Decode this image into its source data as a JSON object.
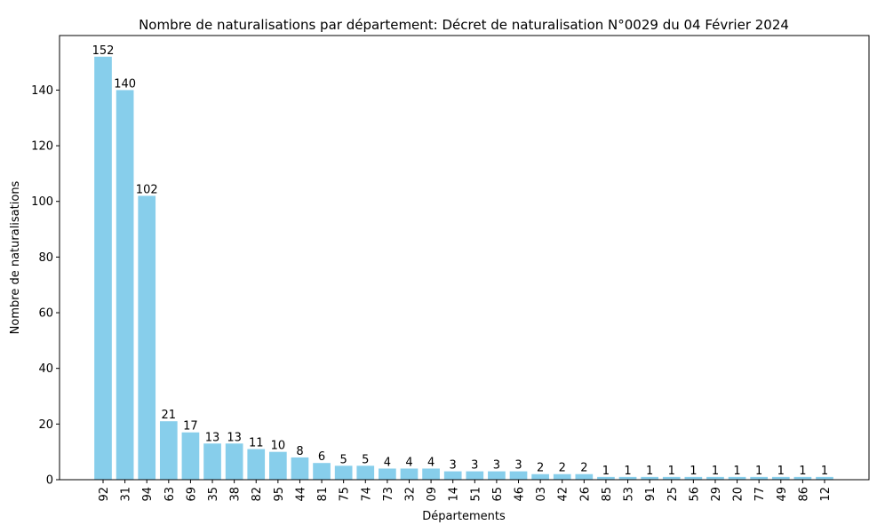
{
  "chart_data": {
    "type": "bar",
    "title": "Nombre de naturalisations par département: Décret de naturalisation N°0029 du 04 Février 2024",
    "xlabel": "Départements",
    "ylabel": "Nombre de naturalisations",
    "categories": [
      "92",
      "31",
      "94",
      "63",
      "69",
      "35",
      "38",
      "82",
      "95",
      "44",
      "81",
      "75",
      "74",
      "73",
      "32",
      "09",
      "14",
      "51",
      "65",
      "46",
      "03",
      "42",
      "26",
      "85",
      "53",
      "91",
      "25",
      "56",
      "29",
      "20",
      "77",
      "49",
      "86",
      "12"
    ],
    "values": [
      152,
      140,
      102,
      21,
      17,
      13,
      13,
      11,
      10,
      8,
      6,
      5,
      5,
      4,
      4,
      4,
      3,
      3,
      3,
      3,
      2,
      2,
      2,
      1,
      1,
      1,
      1,
      1,
      1,
      1,
      1,
      1,
      1,
      1
    ],
    "yticks": [
      0,
      20,
      40,
      60,
      80,
      100,
      120,
      140
    ],
    "ylim": [
      0,
      159.6
    ],
    "grid": false,
    "bar_color": "#87CEEB",
    "data_labels": true
  }
}
